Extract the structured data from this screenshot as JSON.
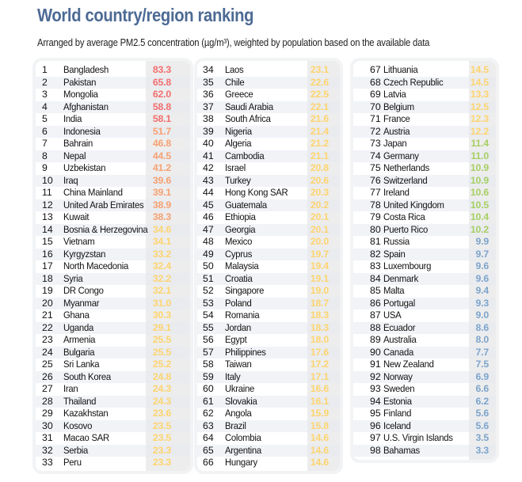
{
  "title": "World country/region ranking",
  "subtitle": "Arranged by average PM2.5 concentration (µg/m³), weighted by population based on the available data",
  "colors": {
    "red": "#f26e6e",
    "orange": "#f7a071",
    "yellow": "#fdd46e",
    "green": "#a6cf63",
    "blue": "#7da4cc"
  },
  "thresholds": {
    "red": 55.5,
    "orange": 35.5,
    "yellow": 12.1,
    "green": 10.0
  },
  "columns": [
    [
      [
        1,
        "Bangladesh",
        "83.3"
      ],
      [
        2,
        "Pakistan",
        "65.8"
      ],
      [
        3,
        "Mongolia",
        "62.0"
      ],
      [
        4,
        "Afghanistan",
        "58.8"
      ],
      [
        5,
        "India",
        "58.1"
      ],
      [
        6,
        "Indonesia",
        "51.7"
      ],
      [
        7,
        "Bahrain",
        "46.8"
      ],
      [
        8,
        "Nepal",
        "44.5"
      ],
      [
        9,
        "Uzbekistan",
        "41.2"
      ],
      [
        10,
        "Iraq",
        "39.6"
      ],
      [
        11,
        "China Mainland",
        "39.1"
      ],
      [
        12,
        "United Arab Emirates",
        "38.9"
      ],
      [
        13,
        "Kuwait",
        "38.3"
      ],
      [
        14,
        "Bosnia & Herzegovina",
        "34.6"
      ],
      [
        15,
        "Vietnam",
        "34.1"
      ],
      [
        16,
        "Kyrgyzstan",
        "33.2"
      ],
      [
        17,
        "North Macedonia",
        "32.4"
      ],
      [
        18,
        "Syria",
        "32.2"
      ],
      [
        19,
        "DR Congo",
        "32.1"
      ],
      [
        20,
        "Myanmar",
        "31.0"
      ],
      [
        21,
        "Ghana",
        "30.3"
      ],
      [
        22,
        "Uganda",
        "29.1"
      ],
      [
        23,
        "Armenia",
        "25.5"
      ],
      [
        24,
        "Bulgaria",
        "25.5"
      ],
      [
        25,
        "Sri Lanka",
        "25.2"
      ],
      [
        26,
        "South Korea",
        "24.8"
      ],
      [
        27,
        "Iran",
        "24.3"
      ],
      [
        28,
        "Thailand",
        "24.3"
      ],
      [
        29,
        "Kazakhstan",
        "23.6"
      ],
      [
        30,
        "Kosovo",
        "23.5"
      ],
      [
        31,
        "Macao SAR",
        "23.5"
      ],
      [
        32,
        "Serbia",
        "23.3"
      ],
      [
        33,
        "Peru",
        "23.3"
      ]
    ],
    [
      [
        34,
        "Laos",
        "23.1"
      ],
      [
        35,
        "Chile",
        "22.6"
      ],
      [
        36,
        "Greece",
        "22.5"
      ],
      [
        37,
        "Saudi Arabia",
        "22.1"
      ],
      [
        38,
        "South Africa",
        "21.6"
      ],
      [
        39,
        "Nigeria",
        "21.4"
      ],
      [
        40,
        "Algeria",
        "21.2"
      ],
      [
        41,
        "Cambodia",
        "21.1"
      ],
      [
        42,
        "Israel",
        "20.8"
      ],
      [
        43,
        "Turkey",
        "20.6"
      ],
      [
        44,
        "Hong Kong SAR",
        "20.3"
      ],
      [
        45,
        "Guatemala",
        "20.2"
      ],
      [
        46,
        "Ethiopia",
        "20.1"
      ],
      [
        47,
        "Georgia",
        "20.1"
      ],
      [
        48,
        "Mexico",
        "20.0"
      ],
      [
        49,
        "Cyprus",
        "19.7"
      ],
      [
        50,
        "Malaysia",
        "19.4"
      ],
      [
        51,
        "Croatia",
        "19.1"
      ],
      [
        52,
        "Singapore",
        "19.0"
      ],
      [
        53,
        "Poland",
        "18.7"
      ],
      [
        54,
        "Romania",
        "18.3"
      ],
      [
        55,
        "Jordan",
        "18.3"
      ],
      [
        56,
        "Egypt",
        "18.0"
      ],
      [
        57,
        "Philippines",
        "17.6"
      ],
      [
        58,
        "Taiwan",
        "17.2"
      ],
      [
        59,
        "Italy",
        "17.1"
      ],
      [
        60,
        "Ukraine",
        "16.6"
      ],
      [
        61,
        "Slovakia",
        "16.1"
      ],
      [
        62,
        "Angola",
        "15.9"
      ],
      [
        63,
        "Brazil",
        "15.8"
      ],
      [
        64,
        "Colombia",
        "14.6"
      ],
      [
        65,
        "Argentina",
        "14.6"
      ],
      [
        66,
        "Hungary",
        "14.6"
      ]
    ],
    [
      [
        67,
        "Lithuania",
        "14.5"
      ],
      [
        68,
        "Czech Republic",
        "14.5"
      ],
      [
        69,
        "Latvia",
        "13.3"
      ],
      [
        70,
        "Belgium",
        "12.5"
      ],
      [
        71,
        "France",
        "12.3"
      ],
      [
        72,
        "Austria",
        "12.2"
      ],
      [
        73,
        "Japan",
        "11.4"
      ],
      [
        74,
        "Germany",
        "11.0"
      ],
      [
        75,
        "Netherlands",
        "10.9"
      ],
      [
        76,
        "Switzerland",
        "10.9"
      ],
      [
        77,
        "Ireland",
        "10.6"
      ],
      [
        78,
        "United Kingdom",
        "10.5"
      ],
      [
        79,
        "Costa Rica",
        "10.4"
      ],
      [
        80,
        "Puerto Rico",
        "10.2"
      ],
      [
        81,
        "Russia",
        "9.9"
      ],
      [
        82,
        "Spain",
        "9.7"
      ],
      [
        83,
        "Luxembourg",
        "9.6"
      ],
      [
        84,
        "Denmark",
        "9.6"
      ],
      [
        85,
        "Malta",
        "9.4"
      ],
      [
        86,
        "Portugal",
        "9.3"
      ],
      [
        87,
        "USA",
        "9.0"
      ],
      [
        88,
        "Ecuador",
        "8.6"
      ],
      [
        89,
        "Australia",
        "8.0"
      ],
      [
        90,
        "Canada",
        "7.7"
      ],
      [
        91,
        "New Zealand",
        "7.5"
      ],
      [
        92,
        "Norway",
        "6.9"
      ],
      [
        93,
        "Sweden",
        "6.6"
      ],
      [
        94,
        "Estonia",
        "6.2"
      ],
      [
        95,
        "Finland",
        "5.6"
      ],
      [
        96,
        "Iceland",
        "5.6"
      ],
      [
        97,
        "U.S. Virgin Islands",
        "3.5"
      ],
      [
        98,
        "Bahamas",
        "3.3"
      ]
    ]
  ]
}
